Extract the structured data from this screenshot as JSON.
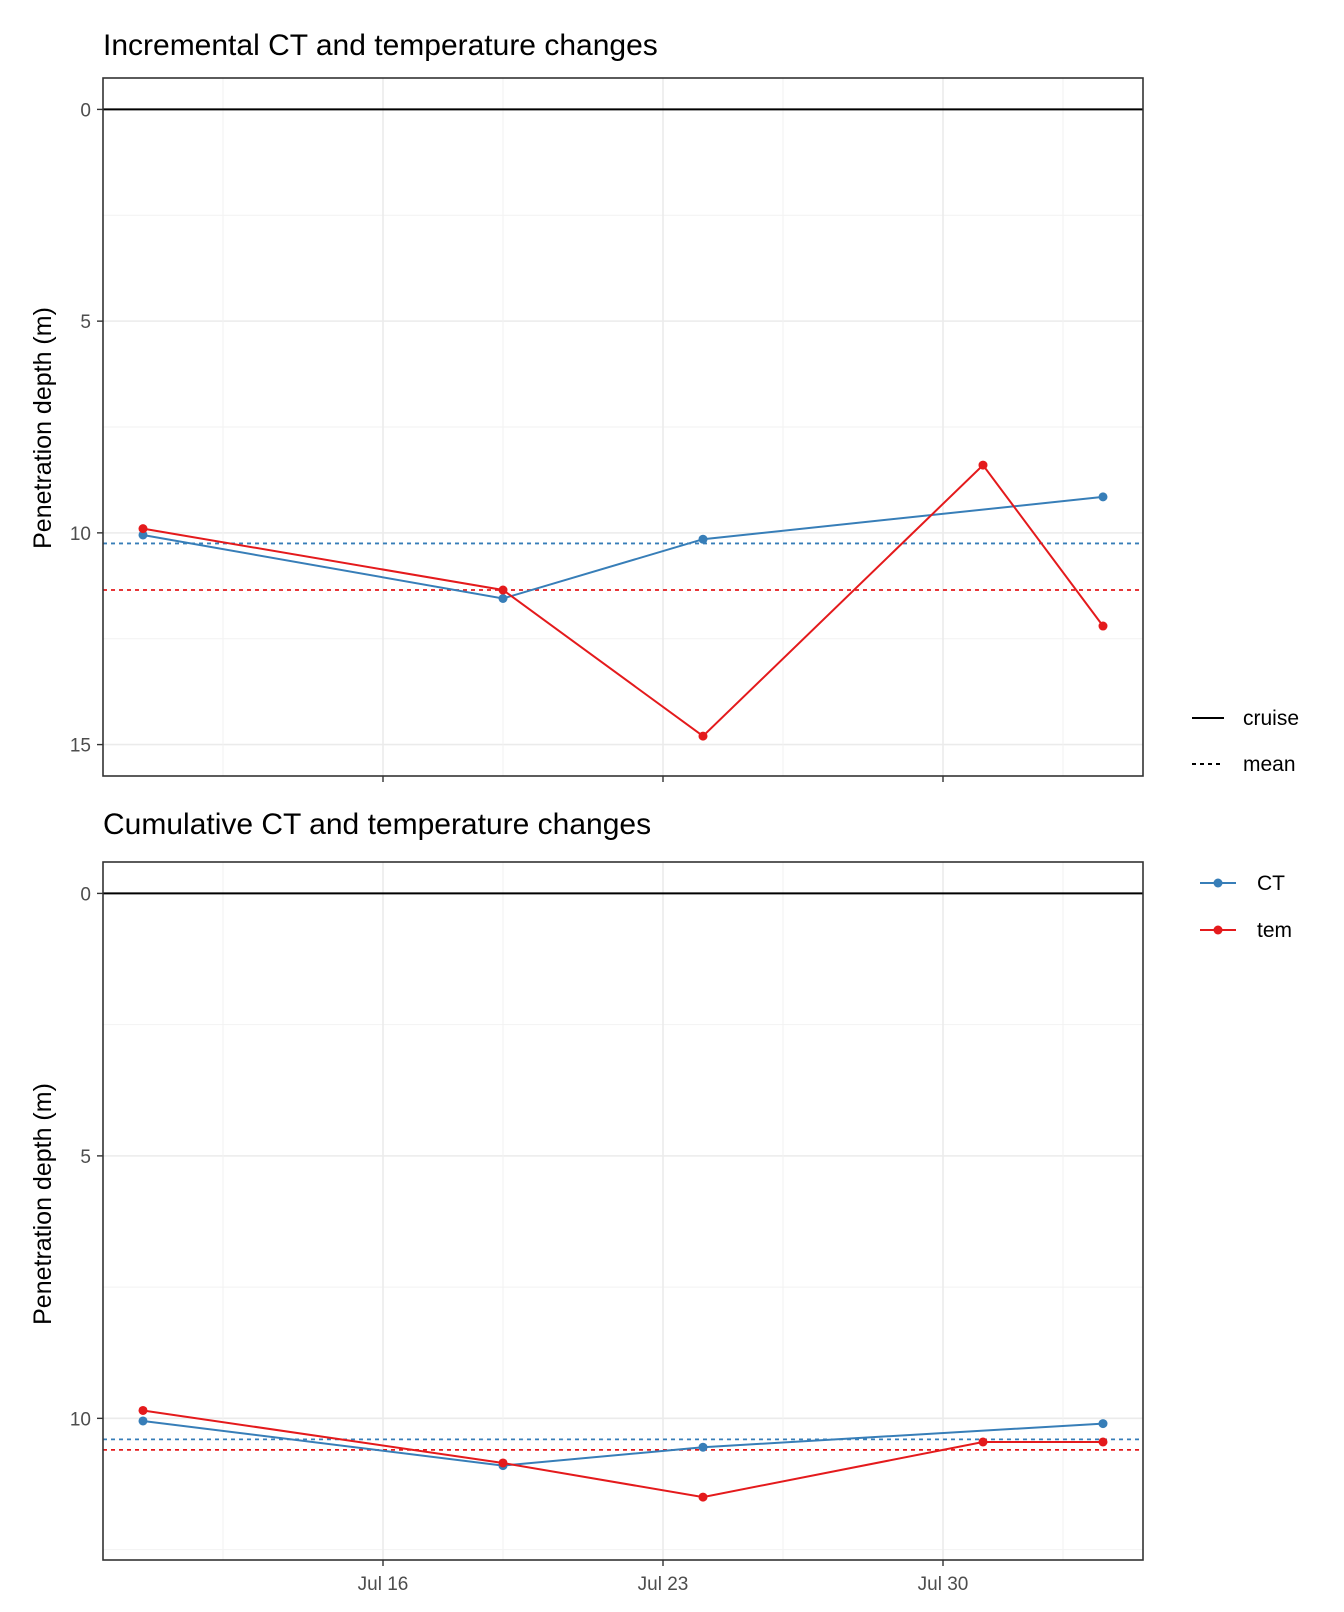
{
  "chart_data": [
    {
      "type": "line",
      "title": "Incremental CT and temperature changes",
      "ylabel": "Penetration depth (m)",
      "xlabel": "",
      "y_reversed": true,
      "ylim": [
        0,
        15
      ],
      "y_ticks": [
        0,
        5,
        10,
        15
      ],
      "x_ticks": [
        "2024-07-16",
        "2024-07-23",
        "2024-07-30"
      ],
      "x_tick_labels": [],
      "grid": true,
      "x_range": [
        "2024-07-09",
        "2024-08-04"
      ],
      "series": [
        {
          "name": "CT",
          "color": "#377eb8",
          "x": [
            "2024-07-10",
            "2024-07-19",
            "2024-07-24",
            "2024-08-03"
          ],
          "values": [
            10.05,
            11.55,
            10.15,
            9.15
          ]
        },
        {
          "name": "tem",
          "color": "#e41a1c",
          "x": [
            "2024-07-10",
            "2024-07-19",
            "2024-07-24",
            "2024-07-31",
            "2024-08-03"
          ],
          "values": [
            9.9,
            11.35,
            14.8,
            8.4,
            12.2
          ]
        }
      ],
      "hlines": [
        {
          "type": "cruise",
          "y": 0,
          "color": "#000000",
          "style": "solid"
        },
        {
          "type": "mean",
          "series": "CT",
          "y": 10.25,
          "color": "#377eb8",
          "style": "dotted"
        },
        {
          "type": "mean",
          "series": "tem",
          "y": 11.35,
          "color": "#e41a1c",
          "style": "dotted"
        }
      ]
    },
    {
      "type": "line",
      "title": "Cumulative CT and temperature changes",
      "ylabel": "Penetration depth (m)",
      "xlabel": "",
      "y_reversed": true,
      "ylim": [
        0,
        12.1
      ],
      "y_ticks": [
        0,
        5,
        10
      ],
      "x_ticks": [
        "2024-07-16",
        "2024-07-23",
        "2024-07-30"
      ],
      "x_tick_labels": [
        "Jul 16",
        "Jul 23",
        "Jul 30"
      ],
      "grid": true,
      "x_range": [
        "2024-07-09",
        "2024-08-04"
      ],
      "series": [
        {
          "name": "CT",
          "color": "#377eb8",
          "x": [
            "2024-07-10",
            "2024-07-19",
            "2024-07-24",
            "2024-08-03"
          ],
          "values": [
            10.05,
            10.9,
            10.55,
            10.1
          ]
        },
        {
          "name": "tem",
          "color": "#e41a1c",
          "x": [
            "2024-07-10",
            "2024-07-19",
            "2024-07-24",
            "2024-07-31",
            "2024-08-03"
          ],
          "values": [
            9.85,
            10.85,
            11.5,
            10.45,
            10.45
          ]
        }
      ],
      "hlines": [
        {
          "type": "cruise",
          "y": 0,
          "color": "#000000",
          "style": "solid"
        },
        {
          "type": "mean",
          "series": "CT",
          "y": 10.4,
          "color": "#377eb8",
          "style": "dotted"
        },
        {
          "type": "mean",
          "series": "tem",
          "y": 10.6,
          "color": "#e41a1c",
          "style": "dotted"
        }
      ]
    }
  ],
  "legends": {
    "linetype": {
      "items": [
        {
          "label": "cruise",
          "style": "solid"
        },
        {
          "label": "mean",
          "style": "dotted"
        }
      ]
    },
    "series": {
      "items": [
        {
          "label": "CT",
          "color": "#377eb8"
        },
        {
          "label": "tem",
          "color": "#e41a1c"
        }
      ]
    }
  }
}
